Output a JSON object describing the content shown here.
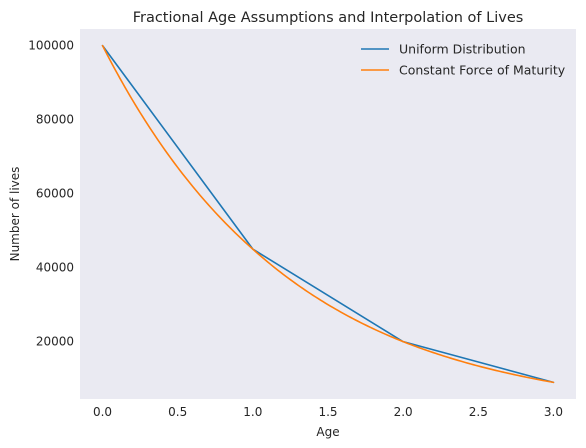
{
  "chart_data": {
    "type": "line",
    "title": "Fractional Age Assumptions and Interpolation of Lives",
    "xlabel": "Age",
    "ylabel": "Number of lives",
    "xlim": [
      -0.15,
      3.15
    ],
    "ylim": [
      4500,
      104500
    ],
    "xticks": [
      0.0,
      0.5,
      1.0,
      1.5,
      2.0,
      2.5,
      3.0
    ],
    "xtick_labels": [
      "0.0",
      "0.5",
      "1.0",
      "1.5",
      "2.0",
      "2.5",
      "3.0"
    ],
    "yticks": [
      20000,
      40000,
      60000,
      80000,
      100000
    ],
    "ytick_labels": [
      "20000",
      "40000",
      "60000",
      "80000",
      "100000"
    ],
    "grid": false,
    "legend_position": "top-right",
    "knots": {
      "age": [
        0,
        1,
        2,
        3
      ],
      "lives": [
        100000,
        45000,
        20000,
        9000
      ]
    },
    "series": [
      {
        "name": "Uniform Distribution",
        "color": "#1f77b4",
        "interpolation": "linear",
        "x": [
          0,
          1,
          2,
          3
        ],
        "y": [
          100000,
          45000,
          20000,
          9000
        ]
      },
      {
        "name": "Constant Force of Maturity",
        "color": "#ff7f0e",
        "interpolation": "exponential",
        "x": [
          0,
          0.25,
          0.5,
          0.75,
          1,
          1.25,
          1.5,
          1.75,
          2,
          2.25,
          2.5,
          2.75,
          3
        ],
        "y": [
          100000,
          81900,
          67100,
          54900,
          45000,
          36700,
          30000,
          24500,
          20000,
          16300,
          13400,
          11000,
          9000
        ]
      }
    ]
  }
}
